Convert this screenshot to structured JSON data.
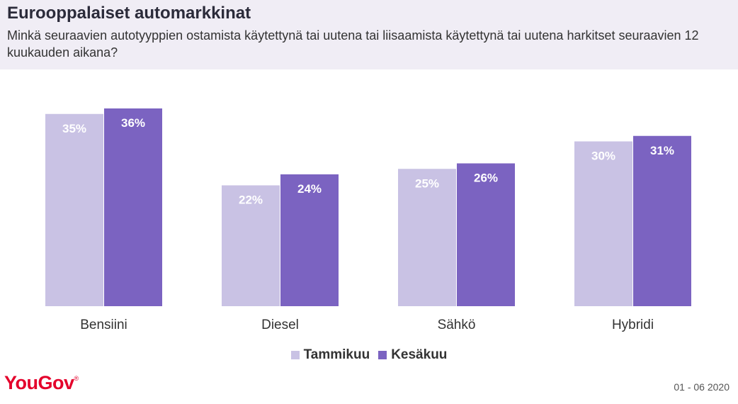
{
  "header": {
    "title": "Eurooppalaiset automarkkinat",
    "subtitle": "Minkä seuraavien autotyyppien ostamista käytettynä tai uutena tai liisaamista käytettynä tai uutena harkitset seuraavien 12 kuukauden aikana?"
  },
  "chart_data": {
    "type": "bar",
    "categories": [
      "Bensiini",
      "Diesel",
      "Sähkö",
      "Hybridi"
    ],
    "series": [
      {
        "name": "Tammikuu",
        "values": [
          35,
          22,
          25,
          30
        ],
        "color": "#c9c2e4"
      },
      {
        "name": "Kesäkuu",
        "values": [
          36,
          24,
          26,
          31
        ],
        "color": "#7b63c1"
      }
    ],
    "value_suffix": "%",
    "ylim": [
      0,
      36
    ],
    "grid": false,
    "legend_position": "bottom-center"
  },
  "legend": {
    "items": [
      "Tammikuu",
      "Kesäkuu"
    ]
  },
  "footer": {
    "logo": "YouGov",
    "date": "01 - 06 2020"
  },
  "colors": {
    "header_bg": "#f0edf5",
    "brand": "#e4002b"
  }
}
